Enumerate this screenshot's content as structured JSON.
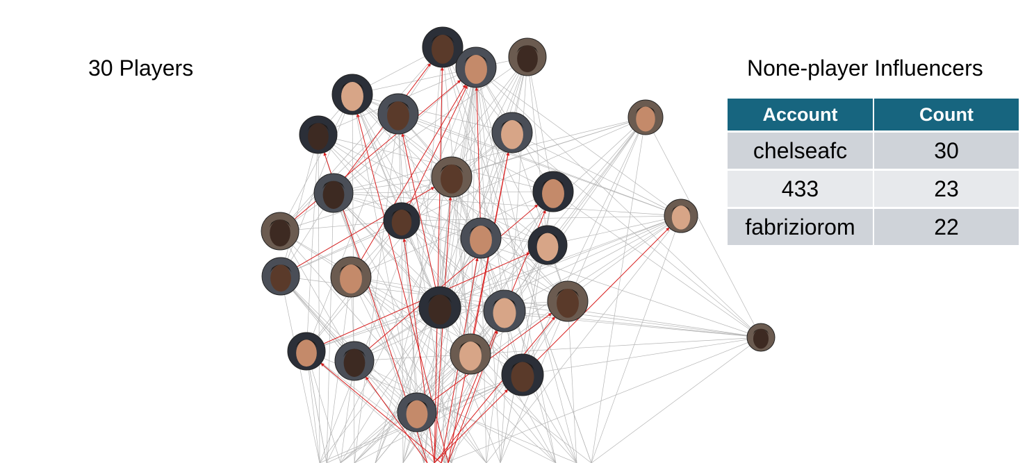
{
  "titles": {
    "players": "30 Players",
    "influencers": "None-player Influencers"
  },
  "table": {
    "headers": [
      "Account",
      "Count"
    ],
    "rows": [
      {
        "account": "chelseafc",
        "count": "30"
      },
      {
        "account": "433",
        "count": "23"
      },
      {
        "account": "fabriziorom",
        "count": "22"
      }
    ]
  },
  "colors": {
    "header_bg": "#17657f",
    "row_odd": "#cfd3d9",
    "row_even": "#e7e9ec",
    "edge_gray": "#b5b5b5",
    "edge_red": "#d81e1e"
  },
  "network": {
    "node_count": 30,
    "node_type": "player-photo"
  }
}
